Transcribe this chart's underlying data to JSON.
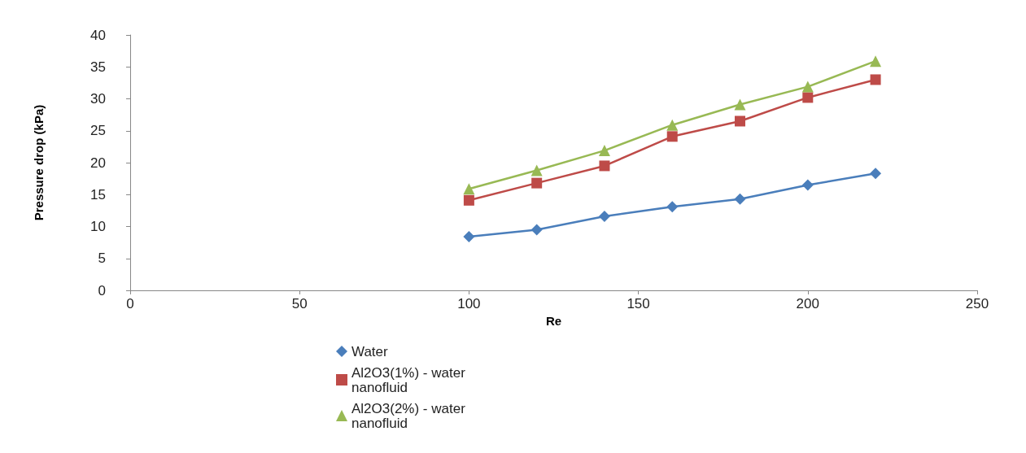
{
  "chart_data": {
    "type": "line",
    "xlabel": "Re",
    "ylabel": "Pressure drop (kPa)",
    "x": [
      100,
      120,
      140,
      160,
      180,
      200,
      220
    ],
    "xlim": [
      0,
      250
    ],
    "xticks": [
      0,
      50,
      100,
      150,
      200,
      250
    ],
    "ylim": [
      0,
      40
    ],
    "yticks": [
      0,
      5,
      10,
      15,
      20,
      25,
      30,
      35,
      40
    ],
    "grid": false,
    "legend": "bottom",
    "line_style": "solid",
    "series": [
      {
        "name": "Water",
        "color": "#4a7ebb",
        "marker": "diamond",
        "values": [
          8.4,
          9.5,
          11.6,
          13.1,
          14.3,
          16.5,
          18.3
        ]
      },
      {
        "name": "Al2O3(1%) - water nanofluid",
        "color": "#be4b48",
        "marker": "square",
        "values": [
          14.1,
          16.8,
          19.5,
          24.1,
          26.5,
          30.2,
          33.0
        ]
      },
      {
        "name": "Al2O3(2%) - water nanofluid",
        "color": "#98b954",
        "marker": "triangle",
        "values": [
          15.9,
          18.8,
          21.9,
          25.9,
          29.1,
          31.9,
          35.9
        ]
      }
    ]
  }
}
